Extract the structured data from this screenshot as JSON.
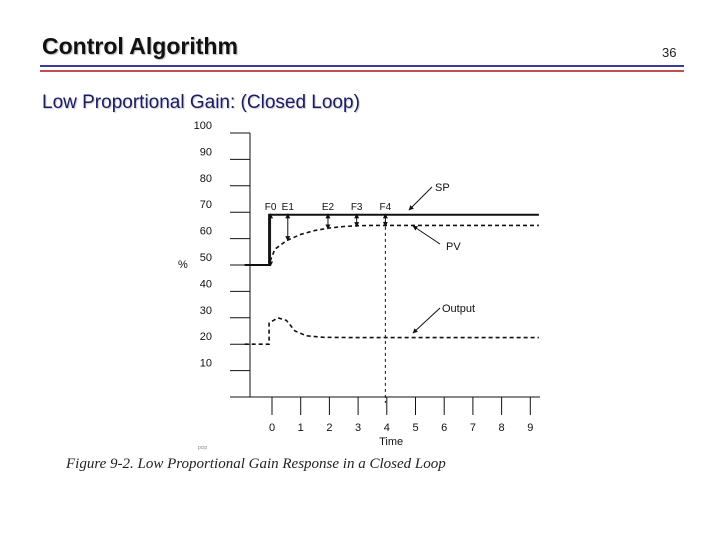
{
  "slide": {
    "title": "Control Algorithm",
    "number": "36",
    "subtitle": "Low Proportional Gain: (Closed Loop)"
  },
  "figure": {
    "caption": "Figure 9-2.   Low Proportional Gain Response in a Closed Loop",
    "fine_print": "pcip"
  },
  "chart_data": {
    "type": "line",
    "title": "",
    "xlabel": "Time",
    "ylabel": "%",
    "xlim": [
      -1.55,
      9.3
    ],
    "ylim": [
      0,
      100
    ],
    "x_ticks": [
      0,
      1,
      2,
      3,
      4,
      5,
      6,
      7,
      8,
      9
    ],
    "y_ticks": [
      10,
      20,
      30,
      40,
      50,
      60,
      70,
      80,
      90,
      100
    ],
    "vertical_marker_x": 3.95,
    "series": [
      {
        "name": "SP",
        "style": "solid",
        "points": [
          [
            -0.95,
            50
          ],
          [
            -0.1,
            50
          ],
          [
            -0.1,
            69
          ],
          [
            9.3,
            69
          ]
        ]
      },
      {
        "name": "PV",
        "style": "dashed",
        "points": [
          [
            -0.95,
            50
          ],
          [
            -0.12,
            50
          ],
          [
            0.1,
            56
          ],
          [
            0.5,
            59.2
          ],
          [
            1.0,
            61.6
          ],
          [
            1.5,
            63.1
          ],
          [
            2.0,
            64.0
          ],
          [
            2.5,
            64.6
          ],
          [
            3.0,
            64.9
          ],
          [
            3.5,
            65.0
          ],
          [
            4.0,
            65.0
          ],
          [
            9.3,
            65.0
          ]
        ]
      },
      {
        "name": "Output",
        "style": "dashed",
        "points": [
          [
            -0.95,
            20
          ],
          [
            -0.1,
            20
          ],
          [
            -0.1,
            28
          ],
          [
            0.2,
            30
          ],
          [
            0.5,
            29
          ],
          [
            0.8,
            25
          ],
          [
            1.2,
            23.2
          ],
          [
            1.8,
            22.6
          ],
          [
            3.0,
            22.5
          ],
          [
            9.3,
            22.5
          ]
        ]
      }
    ],
    "annotations": [
      {
        "label": "F0",
        "x": -0.05,
        "y_top": 69,
        "y_bottom": 50
      },
      {
        "label": "E1",
        "x": 0.55,
        "y_top": 69,
        "y_bottom": 59.6
      },
      {
        "label": "E2",
        "x": 1.95,
        "y_top": 69,
        "y_bottom": 64.0
      },
      {
        "label": "F3",
        "x": 2.95,
        "y_top": 69,
        "y_bottom": 64.9
      },
      {
        "label": "F4",
        "x": 3.95,
        "y_top": 69,
        "y_bottom": 65.0
      }
    ]
  }
}
